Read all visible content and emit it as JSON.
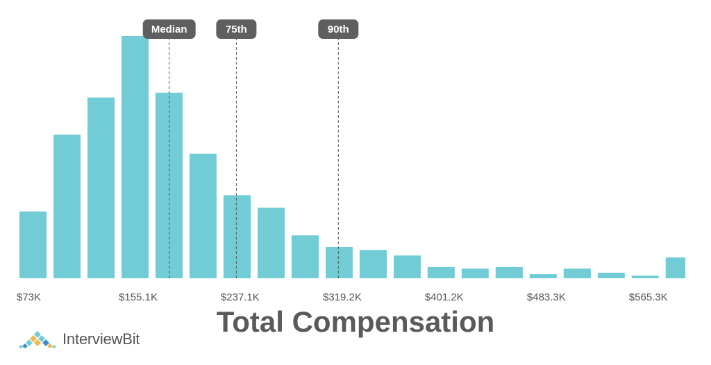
{
  "chart_data": {
    "type": "bar",
    "title": "Total Compensation",
    "xlabel": "Total Compensation",
    "ylabel": "",
    "x_range": [
      73,
      614
    ],
    "x_unit": "$K",
    "tick_labels": [
      "$73K",
      "$155.1K",
      "$237.1K",
      "$319.2K",
      "$401.2K",
      "$483.3K",
      "$565.3K"
    ],
    "tick_values": [
      73,
      155.1,
      237.1,
      319.2,
      401.2,
      483.3,
      565.3
    ],
    "bins": [
      {
        "start": 73.0,
        "end": 100.4
      },
      {
        "start": 100.4,
        "end": 127.7
      },
      {
        "start": 127.7,
        "end": 155.1
      },
      {
        "start": 155.1,
        "end": 182.4
      },
      {
        "start": 182.4,
        "end": 209.8
      },
      {
        "start": 209.8,
        "end": 237.1
      },
      {
        "start": 237.1,
        "end": 264.5
      },
      {
        "start": 264.5,
        "end": 291.8
      },
      {
        "start": 291.8,
        "end": 319.2
      },
      {
        "start": 319.2,
        "end": 346.5
      },
      {
        "start": 346.5,
        "end": 373.9
      },
      {
        "start": 373.9,
        "end": 401.2
      },
      {
        "start": 401.2,
        "end": 428.6
      },
      {
        "start": 428.6,
        "end": 455.9
      },
      {
        "start": 455.9,
        "end": 483.3
      },
      {
        "start": 483.3,
        "end": 510.6
      },
      {
        "start": 510.6,
        "end": 538.0
      },
      {
        "start": 538.0,
        "end": 565.3
      },
      {
        "start": 565.3,
        "end": 592.6
      },
      {
        "start": 592.6,
        "end": 614.0
      }
    ],
    "values": [
      27.6,
      59.3,
      74.6,
      100,
      76.6,
      51.4,
      34.3,
      29.1,
      17.7,
      12.9,
      11.7,
      9.4,
      4.6,
      4.0,
      4.6,
      1.7,
      4.0,
      2.3,
      1.1,
      8.6
    ],
    "markers": [
      {
        "label": "Median",
        "value": 194
      },
      {
        "label": "75th",
        "value": 248
      },
      {
        "label": "90th",
        "value": 330
      }
    ],
    "grid": false,
    "legend": "none"
  },
  "colors": {
    "bar": "#71ccd5",
    "tick_text": "#555555",
    "marker_badge": "#5f5f5f",
    "marker_line": "#555555",
    "title": "#5a5a5a"
  },
  "logo": {
    "text": "InterviewBit",
    "icon": "interviewbit-diamond-logo-icon"
  }
}
